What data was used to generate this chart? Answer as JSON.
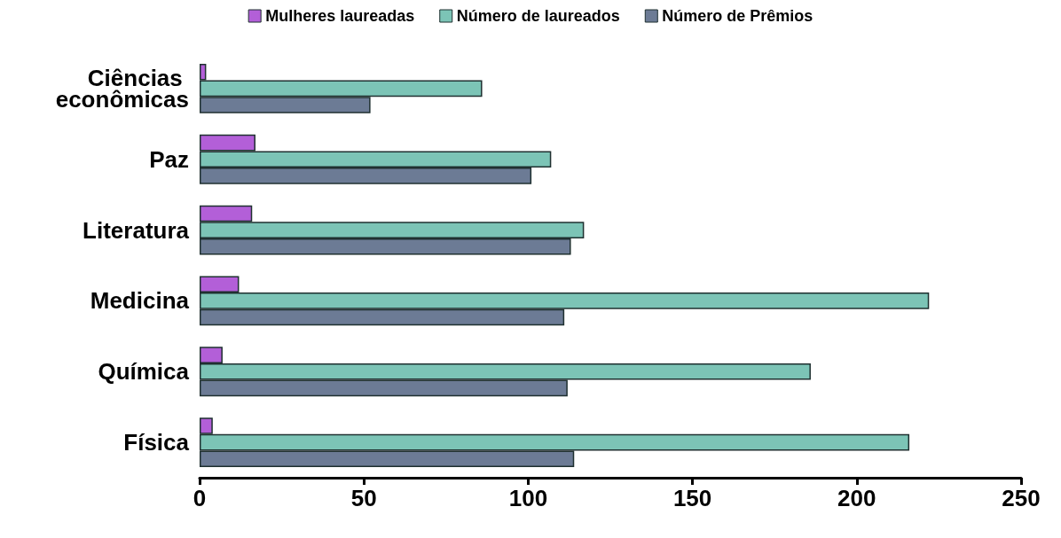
{
  "chart_data": {
    "type": "bar",
    "orientation": "horizontal",
    "categories": [
      "Ciências econômicas",
      "Paz",
      "Literatura",
      "Medicina",
      "Química",
      "Física"
    ],
    "series": [
      {
        "name": "Mulheres laureadas",
        "color": "#b35fd8",
        "values": [
          2,
          17,
          16,
          12,
          7,
          4
        ]
      },
      {
        "name": "Número de laureados",
        "color": "#7cc4b6",
        "values": [
          86,
          107,
          117,
          222,
          186,
          216
        ]
      },
      {
        "name": "Número de Prêmios",
        "color": "#6c7b95",
        "values": [
          52,
          101,
          113,
          111,
          112,
          114
        ]
      }
    ],
    "xlim": [
      0,
      250
    ],
    "xticks": [
      0,
      50,
      100,
      150,
      200,
      250
    ],
    "grid": false,
    "legend": "top"
  }
}
